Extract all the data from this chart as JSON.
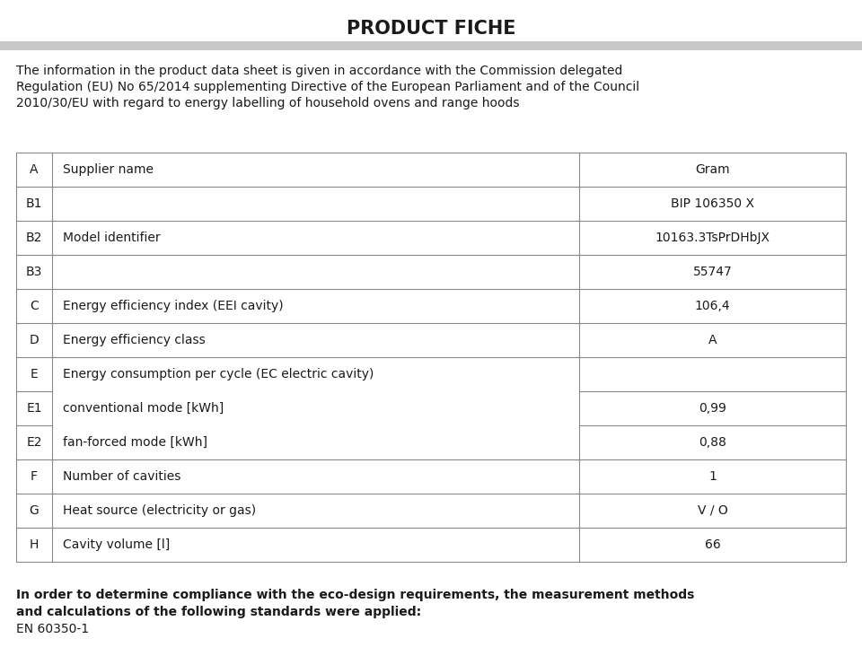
{
  "title": "PRODUCT FICHE",
  "intro_text_lines": [
    "The information in the product data sheet is given in accordance with the Commission delegated",
    "Regulation (EU) No 65/2014 supplementing Directive of the European Parliament and of the Council",
    "2010/30/EU with regard to energy labelling of household ovens and range hoods"
  ],
  "table_rows": [
    {
      "code": "A",
      "label": "Supplier name",
      "value": "Gram",
      "e_group": false
    },
    {
      "code": "B1",
      "label": "",
      "value": "BIP 106350 X",
      "e_group": false
    },
    {
      "code": "B2",
      "label": "Model identifier",
      "value": "10163.3TsPrDHbJX",
      "e_group": false
    },
    {
      "code": "B3",
      "label": "",
      "value": "55747",
      "e_group": false
    },
    {
      "code": "C",
      "label": "Energy efficiency index (EEI cavity)",
      "value": "106,4",
      "e_group": false
    },
    {
      "code": "D",
      "label": "Energy efficiency class",
      "value": "A",
      "e_group": false
    },
    {
      "code": "E",
      "label": "Energy consumption per cycle (EC electric cavity)",
      "value": "",
      "e_group": true
    },
    {
      "code": "E1",
      "label": "conventional mode [kWh]",
      "value": "0,99",
      "e_group": true
    },
    {
      "code": "E2",
      "label": "fan-forced mode [kWh]",
      "value": "0,88",
      "e_group": true
    },
    {
      "code": "F",
      "label": "Number of cavities",
      "value": "1",
      "e_group": false
    },
    {
      "code": "G",
      "label": "Heat source (electricity or gas)",
      "value": "V / O",
      "e_group": false
    },
    {
      "code": "H",
      "label": "Cavity volume [l]",
      "value": "66",
      "e_group": false
    }
  ],
  "footer_line1": "In order to determine compliance with the eco-design requirements, the measurement methods",
  "footer_line2": "and calculations of the following standards were applied:",
  "footer_line3": "EN 60350-1",
  "bg_color": "#ffffff",
  "title_bar_color": "#d4d4d4",
  "sep_bar_color": "#c8c8c8",
  "table_line_color": "#888888",
  "text_color": "#1a1a1a",
  "title_fontsize": 15,
  "body_fontsize": 10,
  "footer_fontsize": 10
}
